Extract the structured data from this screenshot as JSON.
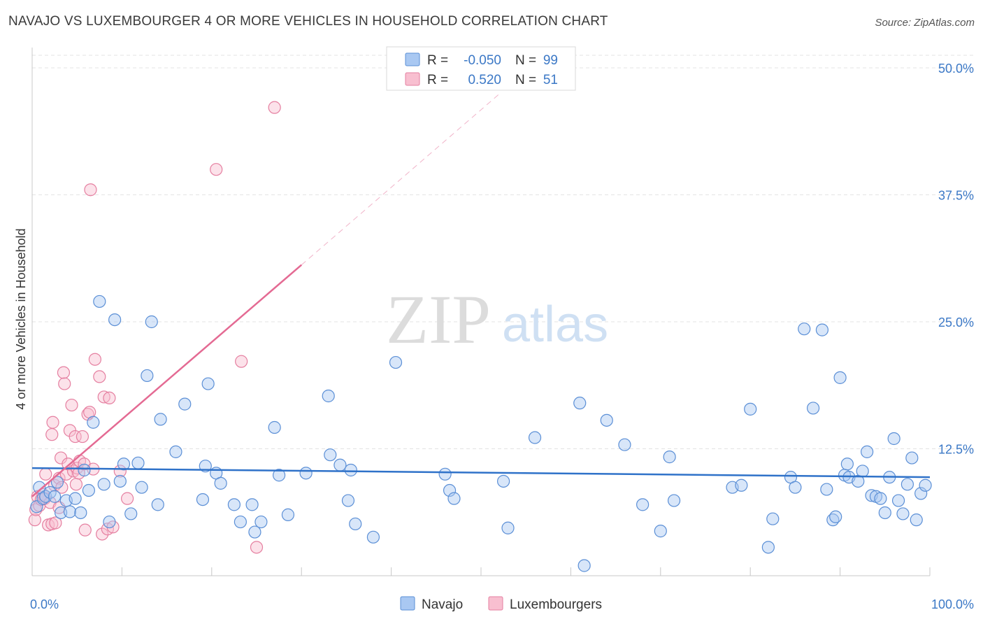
{
  "title": "NAVAJO VS LUXEMBOURGER 4 OR MORE VEHICLES IN HOUSEHOLD CORRELATION CHART",
  "source": "Source: ZipAtlas.com",
  "watermark": {
    "zip": "ZIP",
    "atlas": "atlas"
  },
  "legend_top": {
    "rows": [
      {
        "r_label": "R =",
        "r_value": "-0.050",
        "n_label": "N =",
        "n_value": "99",
        "color": "#a9c8f2",
        "edge": "#5b8fd6"
      },
      {
        "r_label": "R =",
        "r_value": "0.520",
        "n_label": "N =",
        "n_value": "51",
        "color": "#f8bfd0",
        "edge": "#e57fa0"
      }
    ]
  },
  "legend_bottom": [
    "Navajo",
    "Luxembourgers"
  ],
  "colors": {
    "navajo_fill": "#a9c8f2",
    "navajo_edge": "#5b8fd6",
    "navajo_line": "#2f72c9",
    "lux_fill": "#f8bfd0",
    "lux_edge": "#e57fa0",
    "lux_line": "#e46a93",
    "tick_text": "#3b78c6",
    "grid": "#e3e3e3"
  },
  "chart_data": {
    "type": "scatter",
    "title": "NAVAJO VS LUXEMBOURGER 4 OR MORE VEHICLES IN HOUSEHOLD CORRELATION CHART",
    "xlabel": "",
    "ylabel": "4 or more Vehicles in Household",
    "xlim": [
      0,
      100
    ],
    "ylim": [
      0,
      52
    ],
    "x_tick_labels": [
      "0.0%",
      "100.0%"
    ],
    "y_ticks": [
      12.5,
      25.0,
      37.5,
      50.0
    ],
    "y_tick_labels": [
      "12.5%",
      "25.0%",
      "37.5%",
      "50.0%"
    ],
    "grid": true,
    "legend_position": "top-center",
    "series": [
      {
        "name": "Navajo",
        "r": -0.05,
        "n": 99,
        "trend": {
          "x": [
            0,
            100
          ],
          "y": [
            10.6,
            9.7
          ]
        },
        "points": [
          [
            0.5,
            6.8
          ],
          [
            0.8,
            8.7
          ],
          [
            1.2,
            7.6
          ],
          [
            1.5,
            7.8
          ],
          [
            2.0,
            8.2
          ],
          [
            2.5,
            7.8
          ],
          [
            2.8,
            9.2
          ],
          [
            3.2,
            6.2
          ],
          [
            3.8,
            7.4
          ],
          [
            4.2,
            6.3
          ],
          [
            4.8,
            7.6
          ],
          [
            5.4,
            6.2
          ],
          [
            5.8,
            10.4
          ],
          [
            6.3,
            8.4
          ],
          [
            6.8,
            15.1
          ],
          [
            7.5,
            27.0
          ],
          [
            8.0,
            9.0
          ],
          [
            8.6,
            5.3
          ],
          [
            9.2,
            25.2
          ],
          [
            9.8,
            9.3
          ],
          [
            10.2,
            11.0
          ],
          [
            11.0,
            6.1
          ],
          [
            11.8,
            11.1
          ],
          [
            12.2,
            8.7
          ],
          [
            12.8,
            19.7
          ],
          [
            13.3,
            25.0
          ],
          [
            14.0,
            7.0
          ],
          [
            14.3,
            15.4
          ],
          [
            16.0,
            12.2
          ],
          [
            17.0,
            16.9
          ],
          [
            19.0,
            7.5
          ],
          [
            19.3,
            10.8
          ],
          [
            19.6,
            18.9
          ],
          [
            20.5,
            10.1
          ],
          [
            21.0,
            9.1
          ],
          [
            22.5,
            7.0
          ],
          [
            23.2,
            5.3
          ],
          [
            24.5,
            7.0
          ],
          [
            24.8,
            4.3
          ],
          [
            25.5,
            5.3
          ],
          [
            27.0,
            14.6
          ],
          [
            27.5,
            9.9
          ],
          [
            28.5,
            6.0
          ],
          [
            30.5,
            10.1
          ],
          [
            33.0,
            17.7
          ],
          [
            33.2,
            11.9
          ],
          [
            34.3,
            10.9
          ],
          [
            35.2,
            7.4
          ],
          [
            35.5,
            10.4
          ],
          [
            36.0,
            5.1
          ],
          [
            38.0,
            3.8
          ],
          [
            40.5,
            21.0
          ],
          [
            46.0,
            10.0
          ],
          [
            46.5,
            8.4
          ],
          [
            47.0,
            7.6
          ],
          [
            52.5,
            9.3
          ],
          [
            53.0,
            4.7
          ],
          [
            56.0,
            13.6
          ],
          [
            61.0,
            17.0
          ],
          [
            61.5,
            1.0
          ],
          [
            64.0,
            15.3
          ],
          [
            66.0,
            12.9
          ],
          [
            68.0,
            7.0
          ],
          [
            70.0,
            4.4
          ],
          [
            71.0,
            11.7
          ],
          [
            71.5,
            7.4
          ],
          [
            78.0,
            8.7
          ],
          [
            79.0,
            8.9
          ],
          [
            80.0,
            16.4
          ],
          [
            82.0,
            2.8
          ],
          [
            82.5,
            5.6
          ],
          [
            84.5,
            9.7
          ],
          [
            85.0,
            8.7
          ],
          [
            86.0,
            24.3
          ],
          [
            87.0,
            16.5
          ],
          [
            88.0,
            24.2
          ],
          [
            88.5,
            8.5
          ],
          [
            89.2,
            5.5
          ],
          [
            89.5,
            5.8
          ],
          [
            90.0,
            19.5
          ],
          [
            90.5,
            9.9
          ],
          [
            90.8,
            11.0
          ],
          [
            91.0,
            9.7
          ],
          [
            92.0,
            9.3
          ],
          [
            92.5,
            10.3
          ],
          [
            93.0,
            12.2
          ],
          [
            93.5,
            7.9
          ],
          [
            94.0,
            7.8
          ],
          [
            94.5,
            7.6
          ],
          [
            95.0,
            6.2
          ],
          [
            95.5,
            9.7
          ],
          [
            96.0,
            13.5
          ],
          [
            96.5,
            7.4
          ],
          [
            97.0,
            6.1
          ],
          [
            97.5,
            9.0
          ],
          [
            98.0,
            11.6
          ],
          [
            98.5,
            5.5
          ],
          [
            99.0,
            8.1
          ],
          [
            99.5,
            8.9
          ]
        ]
      },
      {
        "name": "Luxembourgers",
        "r": 0.52,
        "n": 51,
        "trend": {
          "x": [
            0,
            30
          ],
          "y": [
            7.8,
            30.6
          ]
        },
        "trend_extension": {
          "x": [
            30,
            52
          ],
          "y": [
            30.6,
            47.4
          ]
        },
        "points": [
          [
            0.3,
            5.5
          ],
          [
            0.4,
            6.5
          ],
          [
            0.6,
            7.8
          ],
          [
            0.8,
            6.9
          ],
          [
            1.0,
            7.5
          ],
          [
            1.2,
            8.0
          ],
          [
            1.4,
            7.6
          ],
          [
            1.5,
            10.0
          ],
          [
            1.8,
            5.0
          ],
          [
            2.0,
            7.2
          ],
          [
            2.2,
            5.1
          ],
          [
            2.2,
            13.9
          ],
          [
            2.3,
            15.1
          ],
          [
            2.5,
            8.9
          ],
          [
            2.6,
            5.2
          ],
          [
            3.0,
            9.6
          ],
          [
            3.0,
            6.7
          ],
          [
            3.2,
            11.6
          ],
          [
            3.3,
            8.7
          ],
          [
            3.5,
            20.0
          ],
          [
            3.6,
            18.9
          ],
          [
            3.8,
            10.0
          ],
          [
            4.0,
            11.0
          ],
          [
            4.2,
            14.3
          ],
          [
            4.4,
            16.8
          ],
          [
            4.6,
            10.3
          ],
          [
            4.8,
            13.7
          ],
          [
            4.9,
            9.0
          ],
          [
            5.0,
            10.6
          ],
          [
            5.2,
            10.1
          ],
          [
            5.3,
            11.3
          ],
          [
            5.6,
            13.7
          ],
          [
            5.8,
            11.0
          ],
          [
            5.9,
            4.5
          ],
          [
            6.2,
            15.9
          ],
          [
            6.4,
            16.1
          ],
          [
            6.5,
            38.0
          ],
          [
            6.8,
            10.5
          ],
          [
            7.0,
            21.3
          ],
          [
            7.5,
            19.6
          ],
          [
            7.8,
            4.1
          ],
          [
            8.0,
            17.6
          ],
          [
            8.4,
            4.6
          ],
          [
            8.6,
            17.5
          ],
          [
            9.0,
            4.8
          ],
          [
            9.8,
            10.3
          ],
          [
            10.6,
            7.6
          ],
          [
            20.5,
            40.0
          ],
          [
            23.3,
            21.1
          ],
          [
            25.0,
            2.8
          ],
          [
            27.0,
            46.1
          ]
        ]
      }
    ]
  }
}
